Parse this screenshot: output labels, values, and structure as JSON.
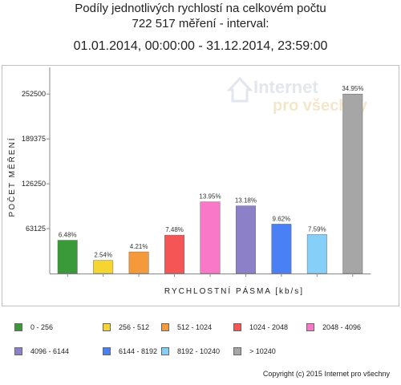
{
  "titles": {
    "line1": "Podíly jednotlivých rychlostí na celkovém počtu",
    "line2": "722 517 měření - interval:",
    "line3": "01.01.2014, 00:00:00 - 31.12.2014, 23:59:00"
  },
  "watermark": {
    "line1": "Internet",
    "line2": "pro všechny"
  },
  "chart_data": {
    "type": "bar",
    "xlabel": "RYCHLOSTNÍ PÁSMA [kb/s]",
    "ylabel": "POČET MĚŘENÍ",
    "yticks": [
      63125,
      126250,
      189375,
      252500
    ],
    "ytick_labels": [
      "63125",
      "126250",
      "189375",
      "252500"
    ],
    "ylim": [
      0,
      290000
    ],
    "grid": false,
    "legend_position": "bottom",
    "categories": [
      "0 - 256",
      "256 - 512",
      "512 - 1024",
      "1024 - 2048",
      "2048 - 4096",
      "4096 - 6144",
      "6144 - 8192",
      "8192 - 10240",
      "> 10240"
    ],
    "values": [
      46800,
      18350,
      30400,
      54000,
      100800,
      95200,
      69500,
      54800,
      252500
    ],
    "data_labels": [
      "6.48%",
      "2.54%",
      "4.21%",
      "7.48%",
      "13.95%",
      "13.18%",
      "9.62%",
      "7.59%",
      "34.95%"
    ],
    "colors": [
      "#3a9a3a",
      "#f6d530",
      "#f59a3b",
      "#f55555",
      "#f978c8",
      "#8c80c8",
      "#4a80f5",
      "#86cff8",
      "#a6a6a6"
    ]
  },
  "copyright": "Copyright (c) 2015 Internet pro všechny"
}
